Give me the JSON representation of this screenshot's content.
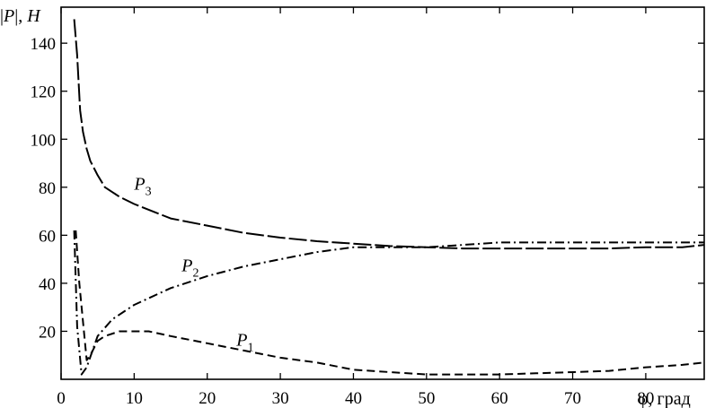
{
  "chart_data": {
    "type": "line",
    "ylabel_parts": {
      "open": "|",
      "var": "P",
      "close": "|, ",
      "unit": "H"
    },
    "xlabel": "φ, град",
    "xlim": [
      0,
      88
    ],
    "ylim": [
      0,
      155
    ],
    "xticks": [
      0,
      10,
      20,
      30,
      40,
      50,
      60,
      70,
      80
    ],
    "xtick_labels": [
      "0",
      "10",
      "20",
      "30",
      "40",
      "50",
      "60",
      "70",
      "80"
    ],
    "yticks": [
      20,
      40,
      60,
      80,
      100,
      120,
      140
    ],
    "ytick_labels": [
      "20",
      "40",
      "60",
      "80",
      "100",
      "120",
      "140"
    ],
    "grid": false,
    "series": [
      {
        "name": "P",
        "sub": "1",
        "style": "dashed",
        "label_at": [
          24,
          14
        ],
        "x": [
          2.0,
          2.5,
          3.5,
          4.0,
          5.0,
          6.0,
          8.0,
          10.0,
          12.0,
          15.0,
          20.0,
          25.0,
          30.0,
          35.0,
          40.0,
          45.0,
          50.0,
          55.0,
          60.0,
          65.0,
          70.0,
          75.0,
          80.0,
          85.0,
          88.0
        ],
        "y": [
          62,
          40,
          8,
          10,
          16,
          18,
          20,
          20,
          20,
          18,
          15,
          12,
          9,
          7,
          4,
          3,
          2,
          2,
          2,
          2.5,
          3,
          3.5,
          5,
          6,
          7
        ]
      },
      {
        "name": "P",
        "sub": "2",
        "style": "dashdot",
        "label_at": [
          16.5,
          45
        ],
        "x": [
          1.8,
          2.2,
          2.8,
          3.5,
          5.0,
          7.0,
          10.0,
          15.0,
          20.0,
          25.0,
          30.0,
          35.0,
          40.0,
          45.0,
          50.0,
          55.0,
          60.0,
          65.0,
          70.0,
          75.0,
          80.0,
          85.0,
          88.0
        ],
        "y": [
          62,
          22,
          2,
          5,
          18,
          25,
          31,
          38,
          43,
          47,
          50,
          53,
          55,
          55,
          55,
          56,
          57,
          57,
          57,
          57,
          57,
          57,
          57
        ]
      },
      {
        "name": "P",
        "sub": "3",
        "style": "longdash",
        "label_at": [
          10,
          79
        ],
        "x": [
          1.8,
          2.2,
          2.6,
          3.0,
          3.5,
          4.0,
          5.0,
          6.0,
          8.0,
          10.0,
          15.0,
          20.0,
          25.0,
          30.0,
          35.0,
          40.0,
          45.0,
          50.0,
          55.0,
          60.0,
          65.0,
          70.0,
          75.0,
          80.0,
          85.0,
          88.0
        ],
        "y": [
          150,
          135,
          112,
          103,
          96,
          91,
          85,
          80,
          76,
          73,
          67,
          64,
          61,
          59,
          57.5,
          56.5,
          55.5,
          55,
          54.5,
          54.5,
          54.5,
          54.5,
          54.5,
          55,
          55,
          56
        ]
      }
    ]
  }
}
